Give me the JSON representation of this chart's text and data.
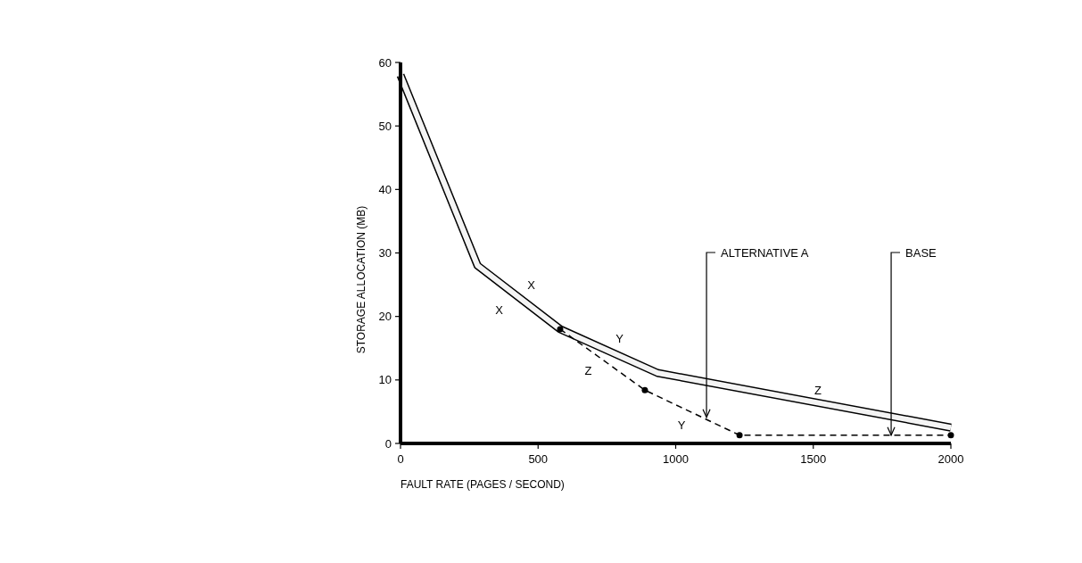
{
  "chart_data": {
    "type": "line",
    "xlabel": "FAULT RATE (PAGES / SECOND)",
    "ylabel": "STORAGE ALLOCATION (MB)",
    "xlim": [
      0,
      2000
    ],
    "xticks": [
      0,
      500,
      1000,
      1500,
      2000
    ],
    "ylim": [
      0,
      60
    ],
    "yticks": [
      0,
      10,
      20,
      30,
      40,
      50,
      60
    ],
    "grid": false,
    "series": [
      {
        "type": "line",
        "color": "#000000",
        "line_style": "solid",
        "marker": "none",
        "x": [
          0,
          280,
          580,
          934,
          2000
        ],
        "values": [
          58,
          28,
          18,
          11.1,
          2.5
        ]
      },
      {
        "type": "line",
        "color": "#000000",
        "line_style": "dashed",
        "marker": "circle",
        "x": [
          580,
          888,
          1232,
          2000
        ],
        "values": [
          18,
          8.4,
          1.3,
          1.3
        ]
      }
    ],
    "annotations": [
      {
        "text": "ALTERNATIVE A",
        "x": 1112,
        "y": 4.1
      },
      {
        "text": "BASE",
        "x": 1783,
        "y": 1.3
      },
      {
        "text": "X",
        "x": 430,
        "y": 23
      },
      {
        "text": "X",
        "x": 430,
        "y": 23
      },
      {
        "text": "Y",
        "x": 757,
        "y": 14.6
      },
      {
        "text": "Z",
        "x": 734,
        "y": 13.2
      },
      {
        "text": "Y",
        "x": 1060,
        "y": 4.9
      },
      {
        "text": "Z",
        "x": 1517,
        "y": 6.4
      }
    ]
  }
}
